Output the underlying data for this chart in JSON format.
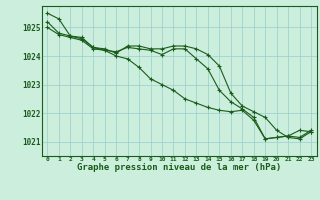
{
  "title": "Graphe pression niveau de la mer (hPa)",
  "x_hours": [
    0,
    1,
    2,
    3,
    4,
    5,
    6,
    7,
    8,
    9,
    10,
    11,
    12,
    13,
    14,
    15,
    16,
    17,
    18,
    19,
    20,
    21,
    22,
    23
  ],
  "line1": [
    1025.2,
    1024.8,
    1024.7,
    1024.6,
    1024.3,
    1024.2,
    1024.15,
    1024.3,
    1024.25,
    1024.2,
    1024.05,
    1024.25,
    1024.25,
    1023.9,
    1023.55,
    1022.8,
    1022.4,
    1022.15,
    1021.85,
    1021.1,
    1021.15,
    1021.2,
    1021.15,
    1021.4
  ],
  "line2": [
    1025.5,
    1025.3,
    1024.7,
    1024.65,
    1024.3,
    1024.25,
    1024.1,
    1024.35,
    1024.35,
    1024.25,
    1024.25,
    1024.35,
    1024.35,
    1024.25,
    1024.05,
    1023.65,
    1022.7,
    1022.25,
    1022.05,
    1021.85,
    1021.4,
    1021.15,
    1021.1,
    1021.35
  ],
  "line3": [
    1025.0,
    1024.75,
    1024.65,
    1024.55,
    1024.25,
    1024.2,
    1024.0,
    1023.9,
    1023.6,
    1023.2,
    1023.0,
    1022.8,
    1022.5,
    1022.35,
    1022.2,
    1022.1,
    1022.05,
    1022.1,
    1021.75,
    1021.1,
    1021.15,
    1021.2,
    1021.4,
    1021.35
  ],
  "line_color": "#1a5c1a",
  "bg_color": "#cceedd",
  "grid_color": "#99cccc",
  "ylim": [
    1020.5,
    1025.75
  ],
  "yticks": [
    1021,
    1022,
    1023,
    1024,
    1025
  ],
  "title_fontsize": 6.5,
  "marker": "+"
}
